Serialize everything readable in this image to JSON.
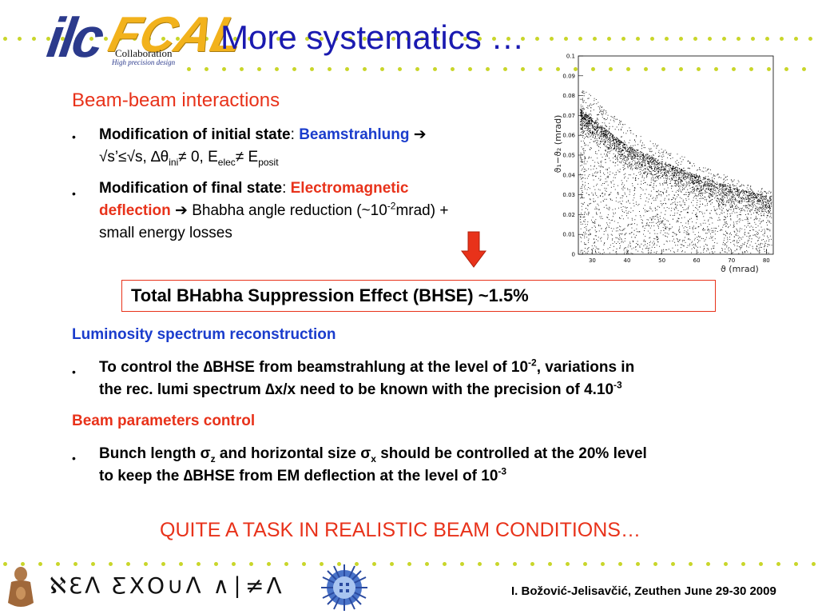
{
  "logo": {
    "brand_left": "ilc",
    "brand_right": "FCAL",
    "collab": "Collaboration",
    "tagline": "High precision design"
  },
  "title": "More systematics …",
  "section_beam": "Beam-beam interactions",
  "bullet1": {
    "lead": "Modification of initial state",
    "colon": ": ",
    "highlight": "Beamstrahlung",
    "arrow": "➔",
    "line2_a": "√s’≤√s, ∆θ",
    "sub_ini": "ini",
    "line2_b": "≠ 0, E",
    "sub_elec": "elec",
    "line2_c": "≠ E",
    "sub_posit": "posit"
  },
  "bullet2": {
    "lead": "Modification of final state",
    "colon": ": ",
    "highlight_a": "Electromagnetic",
    "highlight_b": "deflection",
    "arrow": "➔",
    "text_a": " Bhabha angle reduction (~10",
    "sup": "-2",
    "text_b": "mrad) +",
    "line3": "small energy losses"
  },
  "bhse": "Total BHabha Suppression Effect (BHSE) ~1.5%",
  "section_lumi": "Luminosity spectrum reconstruction",
  "bullet3": {
    "a": "To control the ∆BHSE from beamstrahlung at the level of 10",
    "sup1": "-2",
    "b": ", variations in",
    "c": "the rec. lumi spectrum ∆x/x need to be known with the precision of 4.10",
    "sup2": "-3"
  },
  "section_params": "Beam parameters control",
  "bullet4": {
    "a": "Bunch length σ",
    "sub_z": "z",
    "b": " and horizontal size σ",
    "sub_x": "x",
    "c": " should be controlled at the 20% level",
    "d": "to keep the ∆BHSE from EM deflection at the level of 10",
    "sup": "-3"
  },
  "task": "QUITE A TASK IN REALISTIC BEAM CONDITIONS…",
  "footer_credit": "I. Božović-Jelisavčić, Zeuthen June 29-30 2009",
  "footer_hand": "ℵƐᐱ ƸΧО∪ᐱ ∧∣≠Λ",
  "colors": {
    "title": "#1a1ab0",
    "accent_red": "#e8321a",
    "accent_blue": "#1a3ccc",
    "dots": "#c9d62a",
    "arrow": "#e8321a"
  },
  "chart_data": {
    "type": "scatter",
    "title": "",
    "xlabel": "ϑ (mrad)",
    "ylabel": "ϑ₁−ϑ₂ (mrad)",
    "xlim": [
      26,
      82
    ],
    "ylim": [
      0,
      0.1
    ],
    "x_ticks": [
      "30",
      "40",
      "50",
      "60",
      "70",
      "80"
    ],
    "y_ticks": [
      "0",
      "0.01",
      "0.02",
      "0.03",
      "0.04",
      "0.05",
      "0.06",
      "0.07",
      "0.08",
      "0.09",
      "0.1"
    ],
    "x_tick_values": [
      30,
      40,
      50,
      60,
      70,
      80
    ],
    "y_tick_values": [
      0,
      0.01,
      0.02,
      0.03,
      0.04,
      0.05,
      0.06,
      0.07,
      0.08,
      0.09,
      0.1
    ],
    "density_note": "dense band: y ≈ 0.073 at x=26 decreasing to ≈ 0.029 at x=82; points fill region below the band down to 0",
    "band_upper_edge": [
      [
        26,
        0.074
      ],
      [
        40,
        0.055
      ],
      [
        50,
        0.047
      ],
      [
        60,
        0.04
      ],
      [
        70,
        0.034
      ],
      [
        82,
        0.029
      ]
    ],
    "grid": false,
    "legend": "none"
  }
}
